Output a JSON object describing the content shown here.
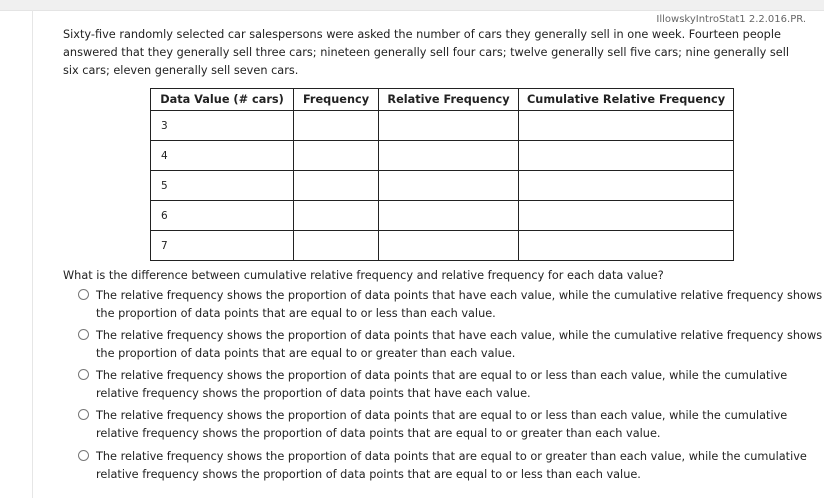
{
  "reference": "IllowskyIntroStat1 2.2.016.PR.",
  "intro": "Sixty-five randomly selected car salespersons were asked the number of cars they generally sell in one week. Fourteen people answered that they generally sell three cars; nineteen generally sell four cars; twelve generally sell five cars; nine generally sell six cars; eleven generally sell seven cars.",
  "table": {
    "headers": [
      "Data Value (# cars)",
      "Frequency",
      "Relative Frequency",
      "Cumulative Relative Frequency"
    ],
    "rows": [
      "3",
      "4",
      "5",
      "6",
      "7"
    ]
  },
  "question": "What is the difference between cumulative relative frequency and relative frequency for each data value?",
  "options": [
    "The relative frequency shows the proportion of data points that have each value, while the cumulative relative frequency shows the proportion of data points that are equal to or less than each value.",
    "The relative frequency shows the proportion of data points that have each value, while the cumulative relative frequency shows the proportion of data points that are equal to or greater than each value.",
    "The relative frequency shows the proportion of data points that are equal to or less than each value, while the cumulative relative frequency shows the proportion of data points that have each value.",
    "The relative frequency shows the proportion of data points that are equal to or less than each value, while the cumulative relative frequency shows the proportion of data points that are equal to or greater than each value.",
    "The relative frequency shows the proportion of data points that are equal to or greater than each value, while the cumulative relative frequency shows the proportion of data points that are equal to or less than each value."
  ]
}
